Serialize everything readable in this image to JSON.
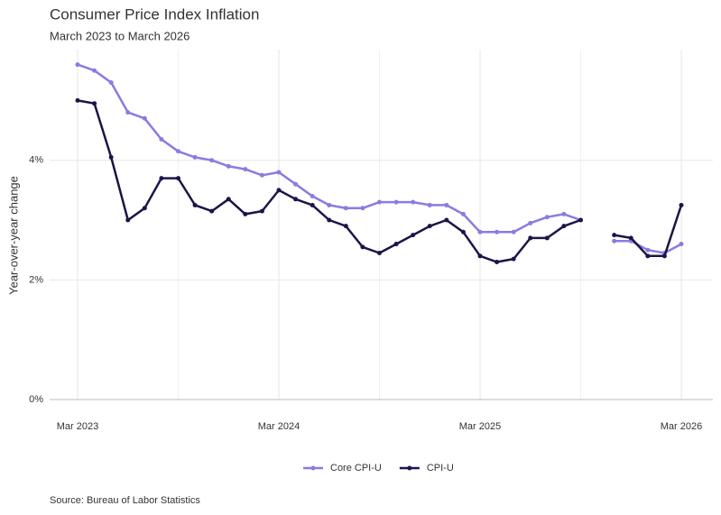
{
  "chart_data": {
    "type": "line",
    "title": "Consumer Price Index Inflation",
    "subtitle": "March 2023 to March 2026",
    "y_label": "Year-over-year change",
    "source": "Source: Bureau of Labor Statistics",
    "categories": [
      "Mar 2023",
      null,
      null,
      null,
      null,
      null,
      null,
      null,
      null,
      null,
      null,
      null,
      "Mar 2024",
      null,
      null,
      null,
      null,
      null,
      null,
      null,
      null,
      null,
      null,
      null,
      "Mar 2025",
      null,
      null,
      null,
      null,
      null,
      null,
      null,
      null,
      null,
      null,
      null,
      "Mar 2026"
    ],
    "ylim": [
      0,
      5.85
    ],
    "yticks": [
      {
        "value": 0,
        "label": "0%"
      },
      {
        "value": 2,
        "label": "2%"
      },
      {
        "value": 4,
        "label": "4%"
      }
    ],
    "grid": true,
    "legend": "bottom",
    "series": [
      {
        "name": "Core CPI-U",
        "color": "#8b7be0",
        "values": [
          5.6,
          5.5,
          5.3,
          4.8,
          4.7,
          4.35,
          4.15,
          4.05,
          4.0,
          3.9,
          3.85,
          3.75,
          3.8,
          3.6,
          3.4,
          3.25,
          3.2,
          3.2,
          3.3,
          3.3,
          3.3,
          3.25,
          3.25,
          3.1,
          2.8,
          2.8,
          2.8,
          2.95,
          3.05,
          3.1,
          3.0,
          null,
          2.65,
          2.65,
          2.5,
          2.45,
          2.6
        ]
      },
      {
        "name": "CPI-U",
        "color": "#1b1548",
        "values": [
          5.0,
          4.95,
          4.05,
          3.0,
          3.2,
          3.7,
          3.7,
          3.25,
          3.15,
          3.35,
          3.1,
          3.15,
          3.5,
          3.35,
          3.25,
          3.0,
          2.9,
          2.55,
          2.45,
          2.6,
          2.75,
          2.9,
          3.0,
          2.8,
          2.4,
          2.3,
          2.35,
          2.7,
          2.7,
          2.9,
          3.0,
          null,
          2.75,
          2.7,
          2.4,
          2.4,
          3.25
        ]
      }
    ]
  }
}
